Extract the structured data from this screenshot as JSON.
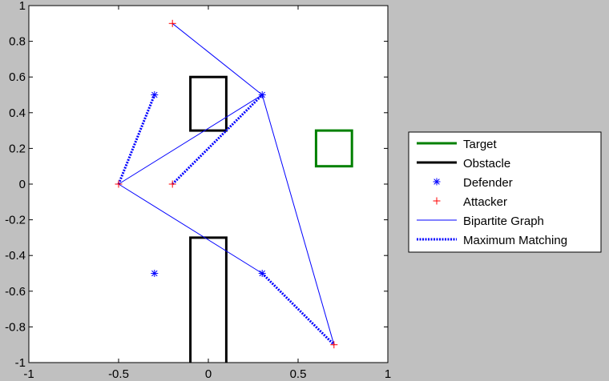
{
  "chart_data": {
    "type": "scatter",
    "title": "",
    "xlabel": "",
    "ylabel": "",
    "xlim": [
      -1,
      1
    ],
    "ylim": [
      -1,
      1
    ],
    "x_ticks": [
      -1,
      -0.5,
      0,
      0.5,
      1
    ],
    "x_tick_labels": [
      "-1",
      "-0.5",
      "0",
      "0.5",
      "1"
    ],
    "y_ticks": [
      1,
      0.8,
      0.6,
      0.4,
      0.2,
      0,
      -0.2,
      -0.4,
      -0.6,
      -0.8,
      -1
    ],
    "y_tick_labels": [
      "1",
      "0.8",
      "0.6",
      "0.4",
      "0.2",
      "0",
      "-0.2",
      "-0.4",
      "-0.6",
      "-0.8",
      "-1"
    ],
    "grid": false,
    "legend_position": "outside-right",
    "colors": {
      "figure_bg": "#c0c0c0",
      "axes_bg": "#ffffff",
      "target": "#008000",
      "obstacle": "#000000",
      "defender": "#0000ff",
      "attacker": "#ff0000",
      "bipartite": "#0000ff",
      "matching": "#0000ff"
    },
    "target": [
      {
        "x": 0.6,
        "y": 0.1,
        "w": 0.2,
        "h": 0.2
      }
    ],
    "obstacles": [
      {
        "x": -0.1,
        "y": 0.3,
        "w": 0.2,
        "h": 0.3
      },
      {
        "x": -0.1,
        "y": -1.05,
        "w": 0.2,
        "h": 0.75
      }
    ],
    "defenders": [
      {
        "x": -0.3,
        "y": 0.5
      },
      {
        "x": 0.3,
        "y": 0.5
      },
      {
        "x": 0.3,
        "y": -0.5
      },
      {
        "x": -0.3,
        "y": -0.5
      }
    ],
    "attackers": [
      {
        "x": -0.2,
        "y": 0.9
      },
      {
        "x": -0.5,
        "y": 0.0
      },
      {
        "x": -0.2,
        "y": 0.0
      },
      {
        "x": 0.7,
        "y": -0.9
      }
    ],
    "bipartite_edges": [
      [
        [
          -0.2,
          0.9
        ],
        [
          0.3,
          0.5
        ]
      ],
      [
        [
          -0.5,
          0.0
        ],
        [
          0.3,
          0.5
        ]
      ],
      [
        [
          -0.5,
          0.0
        ],
        [
          0.3,
          -0.5
        ]
      ],
      [
        [
          0.7,
          -0.9
        ],
        [
          0.3,
          0.5
        ]
      ]
    ],
    "matching_edges": [
      [
        [
          -0.5,
          0.0
        ],
        [
          -0.3,
          0.5
        ]
      ],
      [
        [
          -0.2,
          0.0
        ],
        [
          0.3,
          0.5
        ]
      ],
      [
        [
          0.3,
          -0.5
        ],
        [
          0.7,
          -0.9
        ]
      ]
    ],
    "legend": [
      {
        "label": "Target",
        "kind": "thick-line",
        "color": "#008000"
      },
      {
        "label": "Obstacle",
        "kind": "thick-line",
        "color": "#000000"
      },
      {
        "label": "Defender",
        "kind": "asterisk",
        "color": "#0000ff"
      },
      {
        "label": "Attacker",
        "kind": "plus",
        "color": "#ff0000"
      },
      {
        "label": "Bipartite Graph",
        "kind": "thin-line",
        "color": "#0000ff"
      },
      {
        "label": "Maximum Matching",
        "kind": "dotted-line",
        "color": "#0000ff"
      }
    ]
  }
}
